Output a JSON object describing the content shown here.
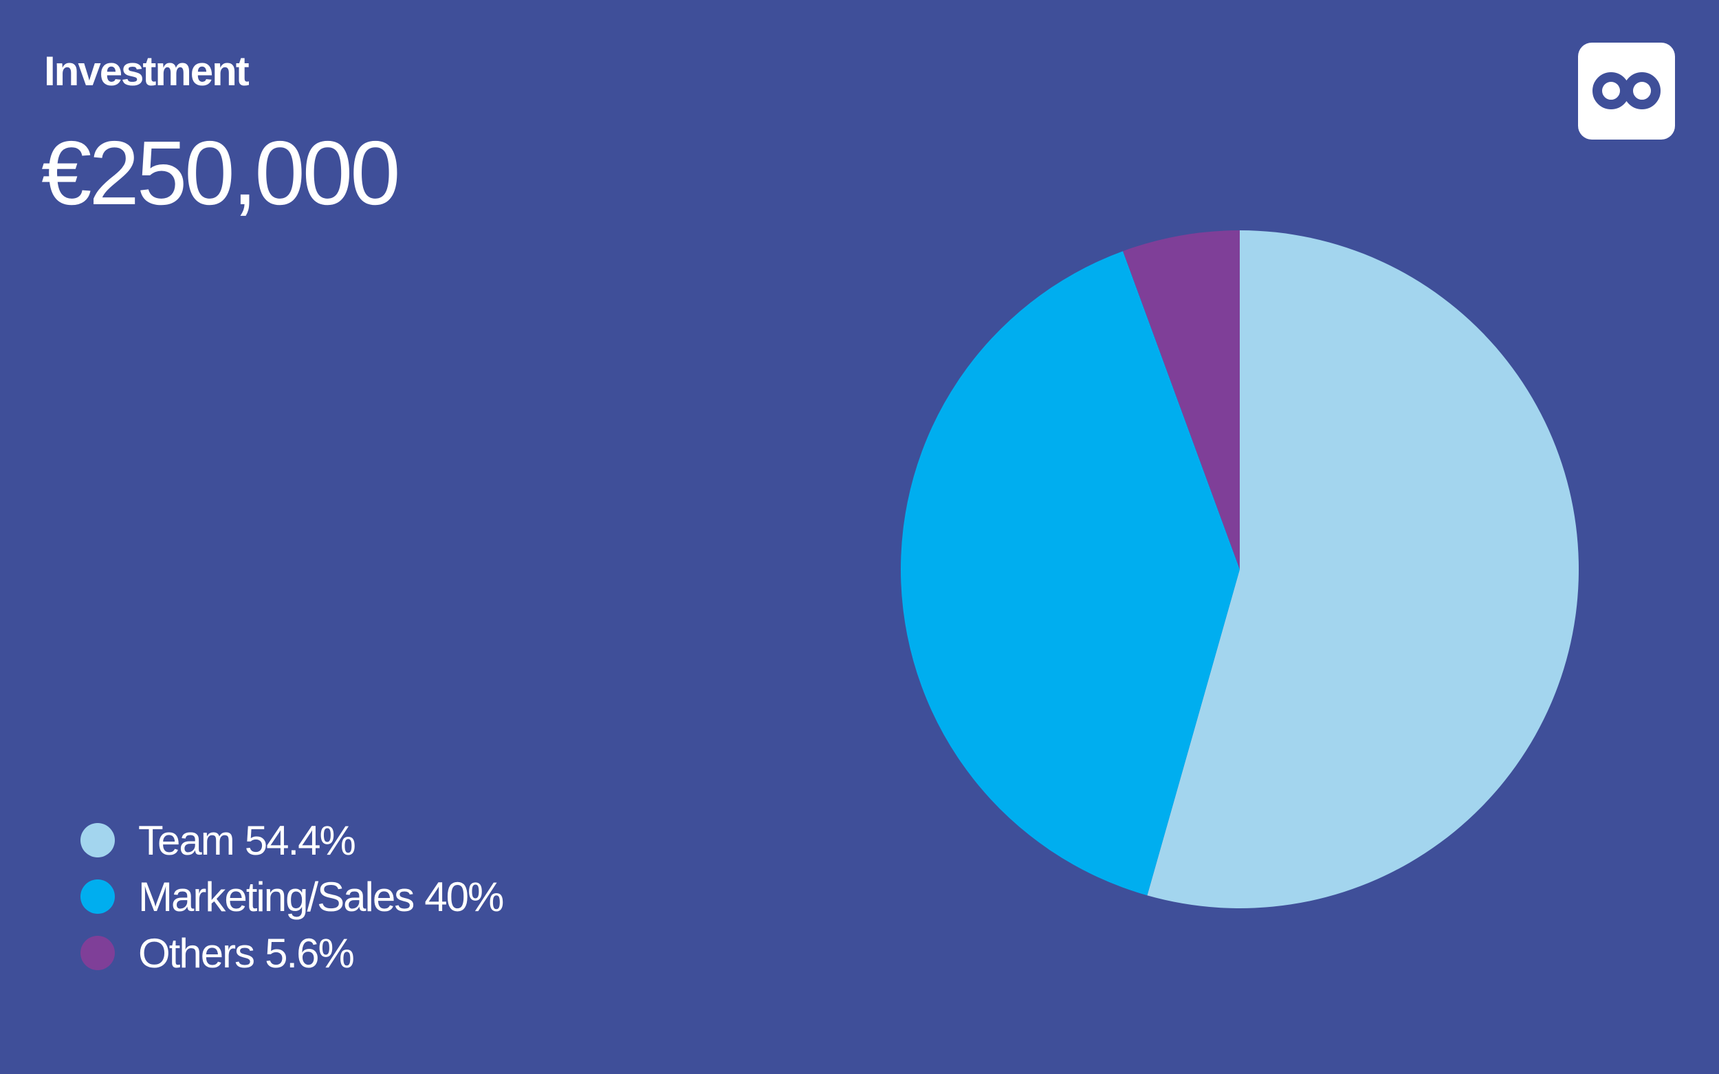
{
  "chart_data": {
    "type": "pie",
    "title": "Investment",
    "subtitle": "€250,000",
    "categories": [
      "Team",
      "Marketing/Sales",
      "Others"
    ],
    "values": [
      54.4,
      40,
      5.6
    ],
    "value_labels": [
      "54.4%",
      "40%",
      "5.6%"
    ],
    "colors": [
      "#a3d5ee",
      "#00aeef",
      "#7f3f98"
    ]
  }
}
